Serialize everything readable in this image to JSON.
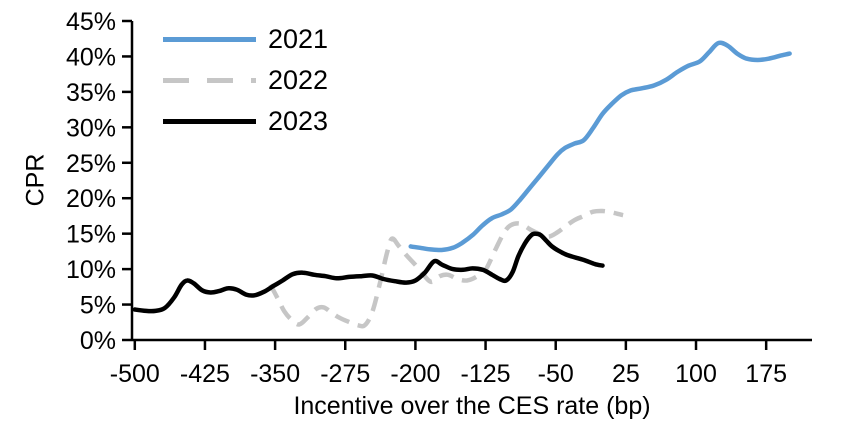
{
  "chart_data": {
    "type": "line",
    "title": "",
    "xlabel": "Incentive over the CES rate (bp)",
    "ylabel": "CPR",
    "x_ticks": [
      -500,
      -425,
      -350,
      -275,
      -200,
      -125,
      -50,
      25,
      100,
      175
    ],
    "y_ticks": [
      0,
      5,
      10,
      15,
      20,
      25,
      30,
      35,
      40,
      45
    ],
    "y_tick_suffix": "%",
    "xlim": [
      -503,
      224
    ],
    "ylim": [
      0,
      45
    ],
    "grid": false,
    "legend_position": "top-left",
    "axis_color": "#000000",
    "series": [
      {
        "name": "2021",
        "color": "#5B9BD5",
        "style": "solid",
        "points": [
          [
            -205,
            13.2
          ],
          [
            -195,
            13.0
          ],
          [
            -185,
            12.8
          ],
          [
            -172,
            12.7
          ],
          [
            -160,
            13.0
          ],
          [
            -150,
            13.7
          ],
          [
            -138,
            14.9
          ],
          [
            -128,
            16.2
          ],
          [
            -118,
            17.2
          ],
          [
            -108,
            17.7
          ],
          [
            -98,
            18.4
          ],
          [
            -88,
            19.8
          ],
          [
            -78,
            21.4
          ],
          [
            -68,
            23.0
          ],
          [
            -58,
            24.6
          ],
          [
            -48,
            26.2
          ],
          [
            -40,
            27.1
          ],
          [
            -30,
            27.7
          ],
          [
            -20,
            28.2
          ],
          [
            -10,
            29.9
          ],
          [
            0,
            31.9
          ],
          [
            10,
            33.3
          ],
          [
            20,
            34.5
          ],
          [
            30,
            35.2
          ],
          [
            42,
            35.5
          ],
          [
            55,
            35.9
          ],
          [
            68,
            36.7
          ],
          [
            80,
            37.8
          ],
          [
            92,
            38.7
          ],
          [
            104,
            39.3
          ],
          [
            114,
            40.6
          ],
          [
            124,
            41.9
          ],
          [
            134,
            41.5
          ],
          [
            144,
            40.4
          ],
          [
            154,
            39.7
          ],
          [
            166,
            39.5
          ],
          [
            178,
            39.7
          ],
          [
            190,
            40.1
          ],
          [
            200,
            40.4
          ]
        ]
      },
      {
        "name": "2022",
        "color": "#C6C6C6",
        "style": "dashed",
        "points": [
          [
            -355,
            7.8
          ],
          [
            -347,
            5.8
          ],
          [
            -340,
            4.0
          ],
          [
            -332,
            2.8
          ],
          [
            -324,
            2.2
          ],
          [
            -315,
            3.2
          ],
          [
            -306,
            4.4
          ],
          [
            -298,
            4.6
          ],
          [
            -290,
            3.9
          ],
          [
            -282,
            3.2
          ],
          [
            -272,
            2.6
          ],
          [
            -262,
            2.1
          ],
          [
            -254,
            2.1
          ],
          [
            -246,
            4.0
          ],
          [
            -238,
            8.0
          ],
          [
            -230,
            12.5
          ],
          [
            -225,
            14.3
          ],
          [
            -218,
            13.3
          ],
          [
            -210,
            12.0
          ],
          [
            -200,
            10.6
          ],
          [
            -192,
            9.3
          ],
          [
            -183,
            8.2
          ],
          [
            -174,
            9.0
          ],
          [
            -165,
            9.2
          ],
          [
            -155,
            8.6
          ],
          [
            -145,
            8.4
          ],
          [
            -135,
            8.9
          ],
          [
            -125,
            9.9
          ],
          [
            -114,
            12.9
          ],
          [
            -105,
            15.2
          ],
          [
            -98,
            16.2
          ],
          [
            -88,
            16.4
          ],
          [
            -76,
            15.5
          ],
          [
            -66,
            14.9
          ],
          [
            -57,
            14.6
          ],
          [
            -48,
            15.2
          ],
          [
            -40,
            16.0
          ],
          [
            -30,
            16.9
          ],
          [
            -20,
            17.5
          ],
          [
            -10,
            18.1
          ],
          [
            0,
            18.2
          ],
          [
            10,
            18.0
          ],
          [
            22,
            17.6
          ]
        ]
      },
      {
        "name": "2023",
        "color": "#000000",
        "style": "solid",
        "points": [
          [
            -500,
            4.3
          ],
          [
            -488,
            4.1
          ],
          [
            -478,
            4.1
          ],
          [
            -468,
            4.5
          ],
          [
            -458,
            6.0
          ],
          [
            -450,
            7.8
          ],
          [
            -444,
            8.4
          ],
          [
            -437,
            8.0
          ],
          [
            -428,
            7.0
          ],
          [
            -419,
            6.7
          ],
          [
            -410,
            6.9
          ],
          [
            -400,
            7.3
          ],
          [
            -391,
            7.1
          ],
          [
            -381,
            6.4
          ],
          [
            -372,
            6.3
          ],
          [
            -362,
            6.8
          ],
          [
            -352,
            7.6
          ],
          [
            -342,
            8.4
          ],
          [
            -331,
            9.3
          ],
          [
            -320,
            9.5
          ],
          [
            -308,
            9.2
          ],
          [
            -296,
            9.0
          ],
          [
            -284,
            8.7
          ],
          [
            -271,
            8.9
          ],
          [
            -258,
            9.0
          ],
          [
            -246,
            9.1
          ],
          [
            -234,
            8.6
          ],
          [
            -222,
            8.3
          ],
          [
            -210,
            8.1
          ],
          [
            -200,
            8.4
          ],
          [
            -190,
            9.5
          ],
          [
            -180,
            11.1
          ],
          [
            -171,
            10.6
          ],
          [
            -160,
            10.0
          ],
          [
            -149,
            9.9
          ],
          [
            -139,
            10.1
          ],
          [
            -128,
            9.9
          ],
          [
            -118,
            9.2
          ],
          [
            -110,
            8.6
          ],
          [
            -103,
            8.4
          ],
          [
            -96,
            9.6
          ],
          [
            -90,
            11.8
          ],
          [
            -83,
            13.6
          ],
          [
            -76,
            14.8
          ],
          [
            -71,
            15.0
          ],
          [
            -66,
            14.8
          ],
          [
            -60,
            14.0
          ],
          [
            -54,
            13.2
          ],
          [
            -47,
            12.6
          ],
          [
            -38,
            12.0
          ],
          [
            -28,
            11.6
          ],
          [
            -18,
            11.2
          ],
          [
            -8,
            10.7
          ],
          [
            0,
            10.5
          ]
        ]
      }
    ]
  }
}
